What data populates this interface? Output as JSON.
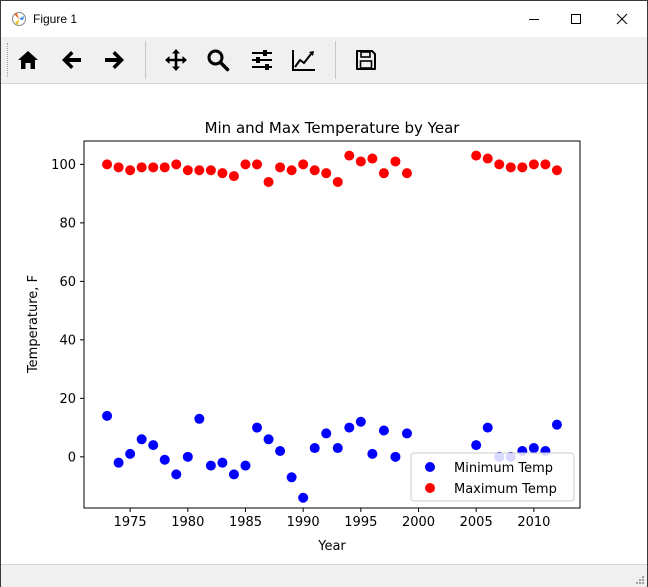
{
  "window": {
    "title": "Figure 1",
    "minimize_label": "minimize",
    "maximize_label": "maximize",
    "close_label": "close"
  },
  "toolbar": {
    "buttons": [
      {
        "name": "home-icon",
        "tooltip": "Home"
      },
      {
        "name": "back-icon",
        "tooltip": "Back"
      },
      {
        "name": "forward-icon",
        "tooltip": "Forward"
      },
      {
        "name": "pan-icon",
        "tooltip": "Pan"
      },
      {
        "name": "zoom-icon",
        "tooltip": "Zoom"
      },
      {
        "name": "configure-subplots-icon",
        "tooltip": "Subplots"
      },
      {
        "name": "edit-curves-icon",
        "tooltip": "Customize"
      },
      {
        "name": "save-icon",
        "tooltip": "Save"
      }
    ]
  },
  "chart_data": {
    "type": "scatter",
    "title": "Min and Max Temperature by Year",
    "xlabel": "Year",
    "ylabel": "Temperature, F",
    "xlim": [
      1971,
      2014
    ],
    "ylim": [
      -17.5,
      108
    ],
    "xticks": [
      1975,
      1980,
      1985,
      1990,
      1995,
      2000,
      2005,
      2010
    ],
    "yticks": [
      0,
      20,
      40,
      60,
      80,
      100
    ],
    "grid": false,
    "legend_position": "lower right",
    "series": [
      {
        "name": "Minimum Temp",
        "color": "#0000ff",
        "x": [
          1973,
          1974,
          1975,
          1976,
          1977,
          1978,
          1979,
          1980,
          1981,
          1982,
          1983,
          1984,
          1985,
          1986,
          1987,
          1988,
          1989,
          1990,
          1991,
          1992,
          1993,
          1994,
          1995,
          1996,
          1997,
          1998,
          1999,
          2005,
          2006,
          2007,
          2008,
          2009,
          2010,
          2011,
          2012
        ],
        "y": [
          14,
          -2,
          1,
          6,
          4,
          -1,
          -6,
          0,
          13,
          -3,
          -2,
          -6,
          -3,
          10,
          6,
          2,
          -7,
          -14,
          3,
          8,
          3,
          10,
          12,
          1,
          9,
          0,
          8,
          4,
          10,
          0,
          0,
          2,
          3,
          2,
          11
        ]
      },
      {
        "name": "Maximum Temp",
        "color": "#ff0000",
        "x": [
          1973,
          1974,
          1975,
          1976,
          1977,
          1978,
          1979,
          1980,
          1981,
          1982,
          1983,
          1984,
          1985,
          1986,
          1987,
          1988,
          1989,
          1990,
          1991,
          1992,
          1993,
          1994,
          1995,
          1996,
          1997,
          1998,
          1999,
          2005,
          2006,
          2007,
          2008,
          2009,
          2010,
          2011,
          2012
        ],
        "y": [
          100,
          99,
          98,
          99,
          99,
          99,
          100,
          98,
          98,
          98,
          97,
          96,
          100,
          100,
          94,
          99,
          98,
          100,
          98,
          97,
          94,
          103,
          101,
          102,
          97,
          101,
          97,
          103,
          102,
          100,
          99,
          99,
          100,
          100,
          98
        ]
      }
    ]
  }
}
